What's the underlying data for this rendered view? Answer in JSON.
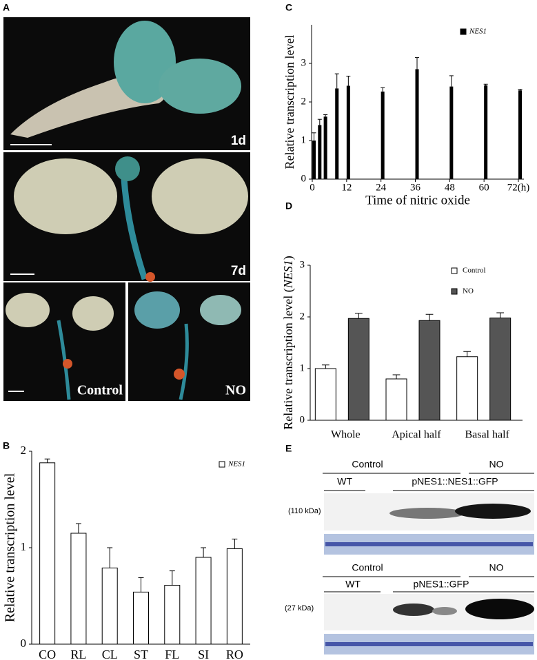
{
  "panel_labels": [
    "A",
    "B",
    "C",
    "D",
    "E"
  ],
  "photo_labels": [
    "1d",
    "7d",
    "Control",
    "NO"
  ],
  "blots": [
    {
      "groups": [
        "Control",
        "NO"
      ],
      "lanes": [
        "WT",
        "pNES1::NES1::GFP"
      ],
      "size": "(110 kDa)"
    },
    {
      "groups": [
        "Control",
        "NO"
      ],
      "lanes": [
        "WT",
        "pNES1::GFP"
      ],
      "size": "(27 kDa)"
    }
  ],
  "chart_data": [
    {
      "type": "bar",
      "ylabel": "Relative transcription level",
      "categories": [
        "CO",
        "RL",
        "CL",
        "ST",
        "FL",
        "SI",
        "RO"
      ],
      "values": [
        1.88,
        1.15,
        0.79,
        0.54,
        0.61,
        0.9,
        0.99
      ],
      "errors": [
        0.04,
        0.1,
        0.21,
        0.15,
        0.15,
        0.1,
        0.1
      ],
      "legend": "NES1",
      "color": "#ffffff",
      "ylim": [
        0,
        2
      ],
      "yticks": [
        0,
        1,
        2
      ]
    },
    {
      "type": "bar",
      "ylabel": "Relative transcription level",
      "xlabel": "Time of nitric oxide",
      "x": [
        0,
        2,
        4,
        8,
        12,
        24,
        36,
        48,
        60,
        72
      ],
      "values": [
        1.0,
        1.4,
        1.62,
        2.35,
        2.42,
        2.27,
        2.85,
        2.4,
        2.43,
        2.3
      ],
      "errors": [
        0.2,
        0.15,
        0.05,
        0.38,
        0.25,
        0.1,
        0.3,
        0.28,
        0.03,
        0.03
      ],
      "legend": "NES1",
      "color": "#000000",
      "xlim": [
        0,
        72
      ],
      "xticks": [
        0,
        12,
        24,
        36,
        48,
        60,
        {
          "value": 72,
          "label": "72(h)"
        }
      ],
      "ylim": [
        0,
        4
      ],
      "yticks": [
        0,
        1,
        2,
        3
      ]
    },
    {
      "type": "bar",
      "ylabel": [
        "Relative transcription level (",
        "NES1",
        ")"
      ],
      "categories": [
        "Whole",
        "Apical half",
        "Basal half"
      ],
      "series": [
        {
          "name": "Control",
          "color": "#ffffff",
          "values": [
            1.0,
            0.8,
            1.23
          ],
          "errors": [
            0.07,
            0.08,
            0.1
          ]
        },
        {
          "name": "NO",
          "color": "#555555",
          "values": [
            1.97,
            1.93,
            1.98
          ],
          "errors": [
            0.1,
            0.12,
            0.1
          ]
        }
      ],
      "ylim": [
        0,
        3
      ],
      "yticks": [
        0,
        1,
        2,
        3
      ]
    }
  ]
}
